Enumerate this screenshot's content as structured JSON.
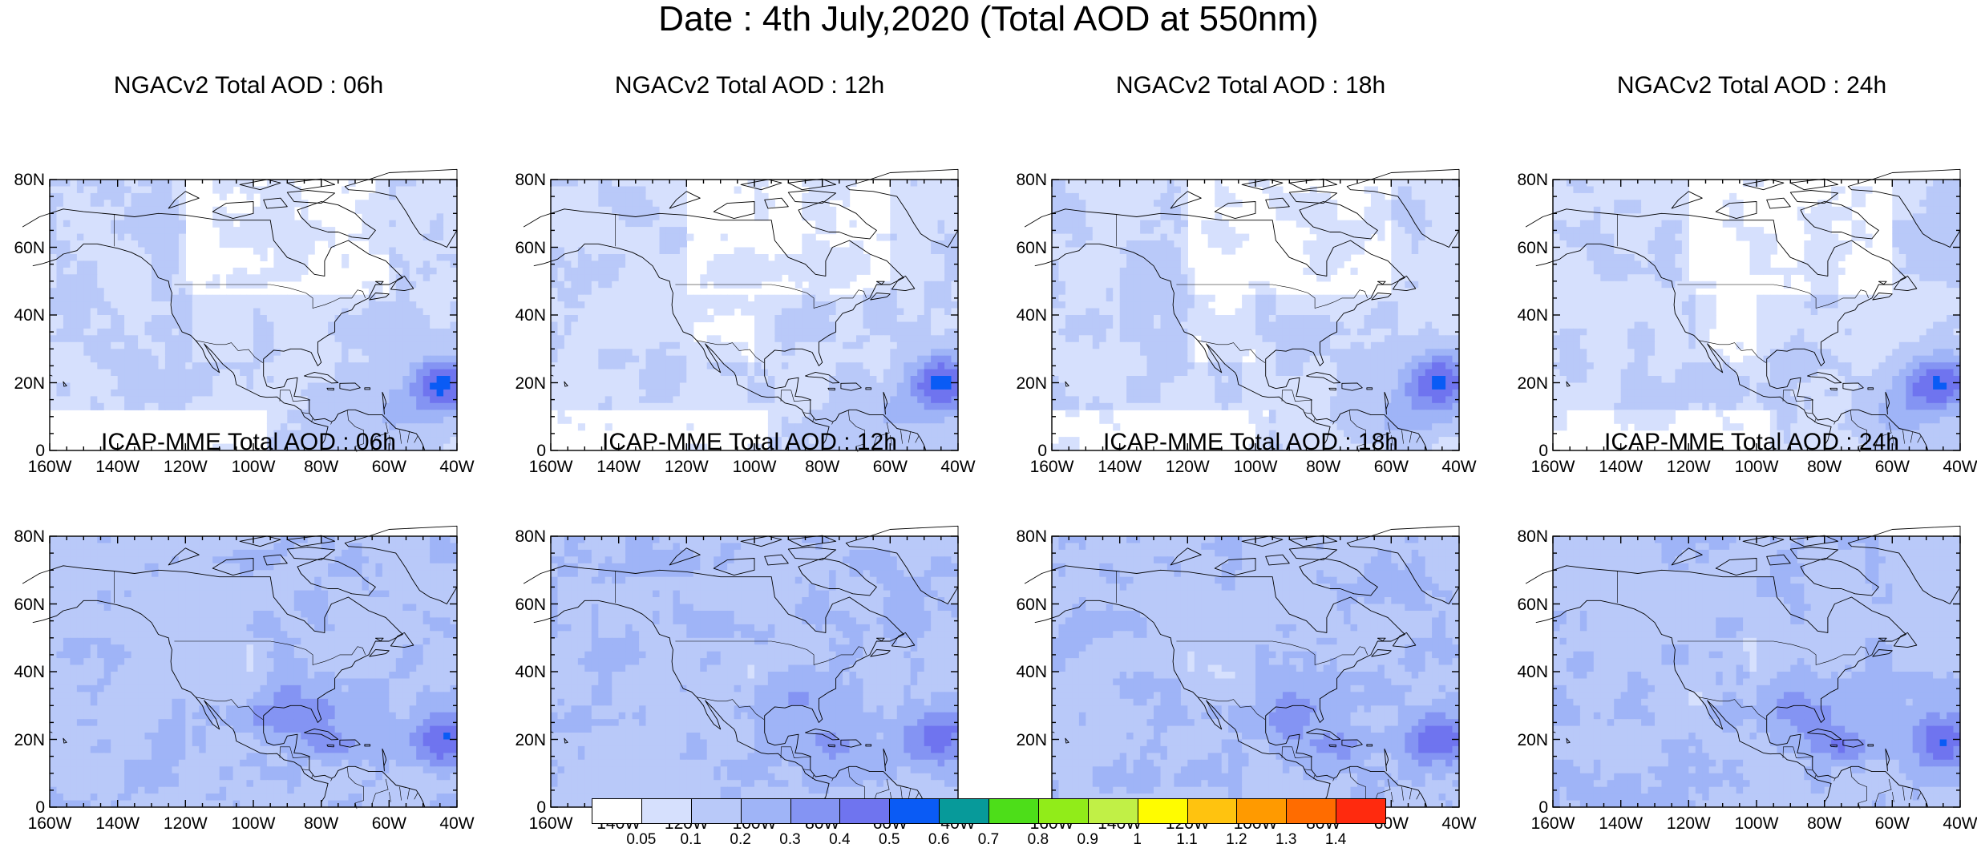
{
  "title": "Date : 4th July,2020 (Total AOD at 550nm)",
  "latitude_ticks": [
    "80N",
    "60N",
    "40N",
    "20N",
    "0"
  ],
  "longitude_ticks": [
    "160W",
    "140W",
    "120W",
    "100W",
    "80W",
    "60W",
    "40W"
  ],
  "map_extent": {
    "lon_min": -160,
    "lon_max": -40,
    "lat_min": 0,
    "lat_max": 80
  },
  "panels": [
    {
      "title": "NGACv2 Total AOD : 06h",
      "model": "NGACv2",
      "forecast_hour": "06h",
      "background_class": "0.05-0.1"
    },
    {
      "title": "NGACv2 Total AOD : 12h",
      "model": "NGACv2",
      "forecast_hour": "12h",
      "background_class": "0.05-0.1"
    },
    {
      "title": "NGACv2 Total AOD : 18h",
      "model": "NGACv2",
      "forecast_hour": "18h",
      "background_class": "0.05-0.1"
    },
    {
      "title": "NGACv2 Total AOD : 24h",
      "model": "NGACv2",
      "forecast_hour": "24h",
      "background_class": "0.05-0.1"
    },
    {
      "title": "ICAP-MME Total AOD : 06h",
      "model": "ICAP-MME",
      "forecast_hour": "06h",
      "background_class": "0.1-0.2"
    },
    {
      "title": "ICAP-MME Total AOD : 12h",
      "model": "ICAP-MME",
      "forecast_hour": "12h",
      "background_class": "0.1-0.2"
    },
    {
      "title": "ICAP-MME Total AOD : 18h",
      "model": "ICAP-MME",
      "forecast_hour": "18h",
      "background_class": "0.1-0.2"
    },
    {
      "title": "ICAP-MME Total AOD : 24h",
      "model": "ICAP-MME",
      "forecast_hour": "24h",
      "background_class": "0.1-0.2"
    }
  ],
  "colorbar": {
    "labels": [
      "0.05",
      "0.1",
      "0.2",
      "0.3",
      "0.4",
      "0.5",
      "0.6",
      "0.7",
      "0.8",
      "0.9",
      "1",
      "1.1",
      "1.2",
      "1.3",
      "1.4"
    ],
    "colors": [
      "#ffffff",
      "#d6e0fd",
      "#b9c9f9",
      "#9fb4f7",
      "#8494f3",
      "#6f74ef",
      "#0a5bf5",
      "#079a9a",
      "#4dde19",
      "#91ec19",
      "#c1f046",
      "#fffc00",
      "#ffc30f",
      "#ff9a00",
      "#ff6c00",
      "#ff2a0e"
    ]
  },
  "colors": {
    "land_outline": "#000000",
    "ocean_low": "#d6e0fd",
    "aod_mid": "#b9c9f9",
    "aod_high": "#8494f3",
    "aod_peak": "#6f74ef"
  }
}
